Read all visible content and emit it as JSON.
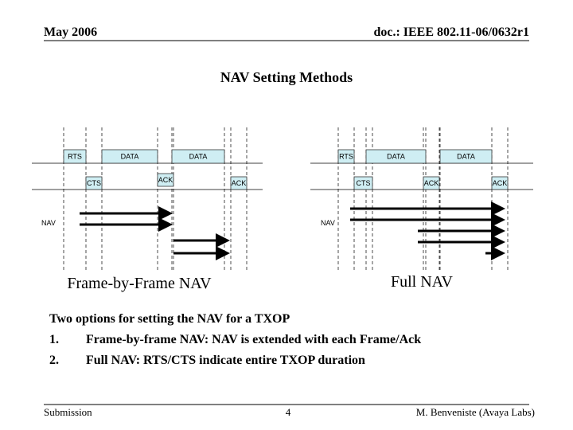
{
  "header": {
    "date": "May 2006",
    "doc": "doc.: IEEE 802.11-06/0632r1"
  },
  "title": "NAV Setting Methods",
  "diagrams": [
    {
      "caption": "Frame-by-Frame NAV",
      "nav_label": "NAV",
      "frames": [
        "RTS",
        "DATA",
        "DATA",
        "CTS",
        "ACK",
        "ACK"
      ]
    },
    {
      "caption": "Full NAV",
      "nav_label": "NAV",
      "frames": [
        "RTS",
        "DATA",
        "DATA",
        "CTS",
        "ACK",
        "ACK"
      ]
    }
  ],
  "body": {
    "intro": "Two options for setting the NAV for a TXOP",
    "items": [
      {
        "number": "1.",
        "text": "Frame-by-frame NAV: NAV is extended with each Frame/Ack"
      },
      {
        "number": "2.",
        "text": "Full NAV: RTS/CTS indicate entire TXOP duration"
      }
    ]
  },
  "footer": {
    "left": "Submission",
    "page": "4",
    "right": "M. Benveniste (Avaya Labs)"
  }
}
